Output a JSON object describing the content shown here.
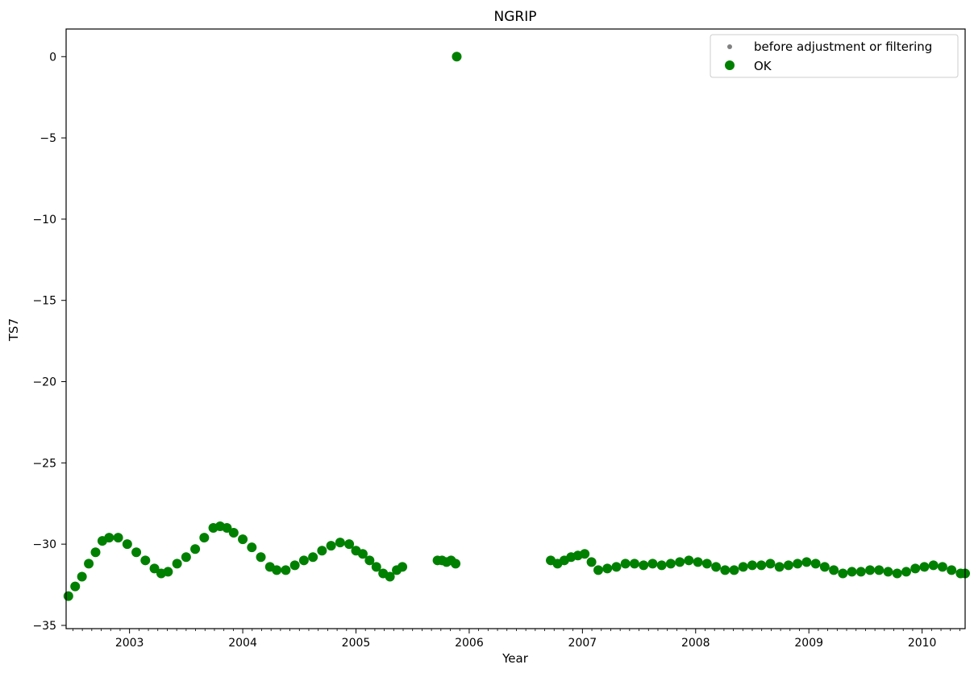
{
  "chart_data": {
    "type": "scatter",
    "title": "NGRIP",
    "xlabel": "Year",
    "ylabel": "TS7",
    "xlim": [
      2002.44,
      2010.38
    ],
    "ylim": [
      -35.2,
      1.7
    ],
    "grid": false,
    "legend_placement": "upper right",
    "xticks": [
      2003,
      2004,
      2005,
      2006,
      2007,
      2008,
      2009,
      2010
    ],
    "xtick_labels": [
      "2003",
      "2004",
      "2005",
      "2006",
      "2007",
      "2008",
      "2009",
      "2010"
    ],
    "yticks": [
      0,
      -5,
      -10,
      -15,
      -20,
      -25,
      -30,
      -35
    ],
    "ytick_labels": [
      "0",
      "−5",
      "−10",
      "−15",
      "−20",
      "−25",
      "−30",
      "−35"
    ],
    "series": [
      {
        "name": "before adjustment or filtering",
        "color": "#808080",
        "marker": "small-dot",
        "x": [],
        "y": []
      },
      {
        "name": "OK",
        "color": "#008000",
        "marker": "large-dot",
        "x": [
          2002.46,
          2002.52,
          2002.58,
          2002.64,
          2002.7,
          2002.76,
          2002.82,
          2002.9,
          2002.98,
          2003.06,
          2003.14,
          2003.22,
          2003.28,
          2003.34,
          2003.42,
          2003.5,
          2003.58,
          2003.66,
          2003.74,
          2003.8,
          2003.86,
          2003.92,
          2004.0,
          2004.08,
          2004.16,
          2004.24,
          2004.3,
          2004.38,
          2004.46,
          2004.54,
          2004.62,
          2004.7,
          2004.78,
          2004.86,
          2004.94,
          2005.0,
          2005.06,
          2005.12,
          2005.18,
          2005.24,
          2005.3,
          2005.36,
          2005.41,
          2005.72,
          2005.76,
          2005.8,
          2005.84,
          2005.88,
          2005.89,
          2006.72,
          2006.78,
          2006.84,
          2006.9,
          2006.96,
          2007.02,
          2007.08,
          2007.14,
          2007.22,
          2007.3,
          2007.38,
          2007.46,
          2007.54,
          2007.62,
          2007.7,
          2007.78,
          2007.86,
          2007.94,
          2008.02,
          2008.1,
          2008.18,
          2008.26,
          2008.34,
          2008.42,
          2008.5,
          2008.58,
          2008.66,
          2008.74,
          2008.82,
          2008.9,
          2008.98,
          2009.06,
          2009.14,
          2009.22,
          2009.3,
          2009.38,
          2009.46,
          2009.54,
          2009.62,
          2009.7,
          2009.78,
          2009.86,
          2009.94,
          2010.02,
          2010.1,
          2010.18,
          2010.26,
          2010.34,
          2010.38
        ],
        "y": [
          -33.2,
          -32.6,
          -32.0,
          -31.2,
          -30.5,
          -29.8,
          -29.6,
          -29.6,
          -30.0,
          -30.5,
          -31.0,
          -31.5,
          -31.8,
          -31.7,
          -31.2,
          -30.8,
          -30.3,
          -29.6,
          -29.0,
          -28.9,
          -29.0,
          -29.3,
          -29.7,
          -30.2,
          -30.8,
          -31.4,
          -31.6,
          -31.6,
          -31.3,
          -31.0,
          -30.8,
          -30.4,
          -30.1,
          -29.9,
          -30.0,
          -30.4,
          -30.6,
          -31.0,
          -31.4,
          -31.8,
          -32.0,
          -31.6,
          -31.4,
          -31.0,
          -31.0,
          -31.1,
          -31.0,
          -31.2,
          0.0,
          -31.0,
          -31.2,
          -31.0,
          -30.8,
          -30.7,
          -30.6,
          -31.1,
          -31.6,
          -31.5,
          -31.4,
          -31.2,
          -31.2,
          -31.3,
          -31.2,
          -31.3,
          -31.2,
          -31.1,
          -31.0,
          -31.1,
          -31.2,
          -31.4,
          -31.6,
          -31.6,
          -31.4,
          -31.3,
          -31.3,
          -31.2,
          -31.4,
          -31.3,
          -31.2,
          -31.1,
          -31.2,
          -31.4,
          -31.6,
          -31.8,
          -31.7,
          -31.7,
          -31.6,
          -31.6,
          -31.7,
          -31.8,
          -31.7,
          -31.5,
          -31.4,
          -31.3,
          -31.4,
          -31.6,
          -31.8,
          -31.8
        ]
      }
    ]
  }
}
